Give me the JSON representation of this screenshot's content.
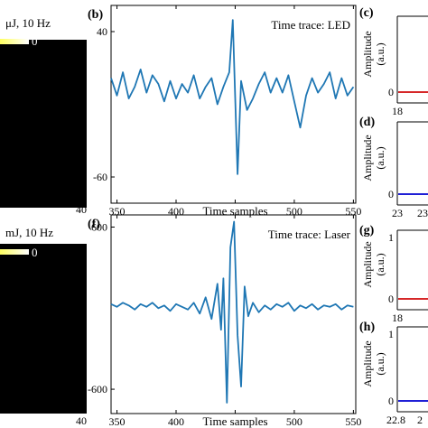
{
  "figure": {
    "left_panels": [
      {
        "title": "μJ, 10 Hz",
        "colorbar_label": "0",
        "bottom_tick": "40"
      },
      {
        "title": "mJ, 10 Hz",
        "colorbar_label": "0",
        "bottom_tick": "40"
      }
    ],
    "right_panels": [
      {
        "label": "(c)",
        "ylabel": "Amplitude\n(a.u.)",
        "ytick": "0",
        "xtick_left": "18",
        "xtick_right": "",
        "color": "#d62728"
      },
      {
        "label": "(d)",
        "ylabel": "Amplitude\n(a.u.)",
        "ytick": "0",
        "xtick_left": "23",
        "xtick_right": "23",
        "color": "#1f1fd6"
      },
      {
        "label": "(g)",
        "ylabel": "Amplitude\n(a.u.)",
        "ytick": "0",
        "ytick_top": "1",
        "xtick_left": "18",
        "xtick_right": "",
        "color": "#d62728"
      },
      {
        "label": "(h)",
        "ylabel": "Amplitude\n(a.u.)",
        "ytick": "0",
        "ytick_top": "1",
        "xtick_left": "22.8",
        "xtick_right": "2",
        "color": "#1f1fd6"
      }
    ]
  },
  "chart_data": [
    {
      "type": "line",
      "panel_label": "(b)",
      "annotation": "Time trace: LED",
      "xlabel": "Time samples",
      "ylabel": "Amplitude (a.u.)",
      "xlim": [
        345,
        552
      ],
      "ylim": [
        -78,
        58
      ],
      "xticks": [
        350,
        400,
        450,
        500,
        550
      ],
      "xtick_labels": [
        "350",
        "400",
        "",
        "500",
        "550"
      ],
      "yticks": [
        40,
        -60
      ],
      "ytick_labels": [
        "40",
        "-60"
      ],
      "color": "#1f77b4",
      "series": [
        {
          "x": [
            345,
            350,
            355,
            360,
            365,
            370,
            375,
            380,
            385,
            390,
            395,
            400,
            405,
            410,
            415,
            420,
            425,
            430,
            435,
            440,
            445,
            448,
            450,
            452,
            455,
            460,
            465,
            470,
            475,
            480,
            485,
            490,
            495,
            500,
            505,
            510,
            515,
            520,
            525,
            530,
            535,
            540,
            545,
            550
          ],
          "y": [
            8,
            -4,
            12,
            -6,
            2,
            14,
            -2,
            10,
            4,
            -8,
            6,
            -6,
            4,
            -2,
            10,
            -6,
            2,
            8,
            -10,
            2,
            12,
            48,
            -6,
            -58,
            6,
            -14,
            -6,
            4,
            12,
            -2,
            8,
            -2,
            10,
            -8,
            -26,
            -4,
            8,
            -2,
            4,
            12,
            -6,
            8,
            -4,
            2
          ]
        }
      ]
    },
    {
      "type": "line",
      "panel_label": "(f)",
      "annotation": "Time trace: Laser",
      "xlabel": "Time samples",
      "ylabel": "Amplitude (a.u.)",
      "xlim": [
        345,
        552
      ],
      "ylim": [
        -780,
        690
      ],
      "xticks": [
        350,
        400,
        450,
        500,
        550
      ],
      "xtick_labels": [
        "350",
        "400",
        "",
        "500",
        "550"
      ],
      "yticks": [
        600,
        -600
      ],
      "ytick_labels": [
        "600",
        "-600"
      ],
      "color": "#1f77b4",
      "series": [
        {
          "x": [
            345,
            350,
            355,
            360,
            365,
            370,
            375,
            380,
            385,
            390,
            395,
            400,
            405,
            410,
            415,
            420,
            425,
            430,
            435,
            438,
            440,
            443,
            446,
            449,
            452,
            455,
            458,
            461,
            465,
            470,
            475,
            480,
            485,
            490,
            495,
            500,
            505,
            510,
            515,
            520,
            525,
            530,
            535,
            540,
            545,
            550
          ],
          "y": [
            30,
            10,
            40,
            20,
            -10,
            30,
            10,
            40,
            0,
            20,
            -20,
            30,
            10,
            -10,
            40,
            -40,
            80,
            -80,
            180,
            -160,
            220,
            -700,
            450,
            640,
            -200,
            -580,
            160,
            -60,
            40,
            -30,
            20,
            -10,
            30,
            10,
            40,
            -20,
            20,
            0,
            30,
            -10,
            20,
            10,
            30,
            -10,
            20,
            10
          ]
        }
      ]
    }
  ]
}
